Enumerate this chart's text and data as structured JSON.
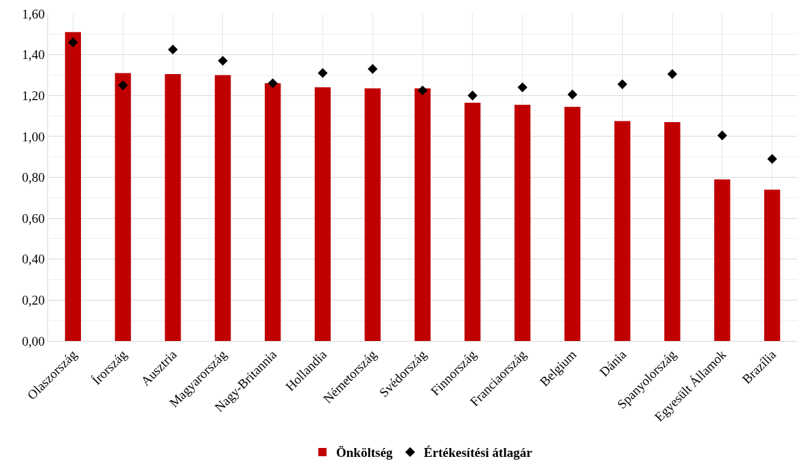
{
  "chart_data": {
    "type": "bar",
    "categories": [
      "Olaszország",
      "Írország",
      "Ausztria",
      "Magyarország",
      "Nagy-Britannia",
      "Hollandia",
      "Németország",
      "Svédország",
      "Finnország",
      "Franciaország",
      "Belgium",
      "Dánia",
      "Spanyolország",
      "Egyesült Államok",
      "Brazília"
    ],
    "series": [
      {
        "name": "Önköltség",
        "color": "#c00000",
        "values": [
          1.51,
          1.31,
          1.305,
          1.3,
          1.26,
          1.24,
          1.235,
          1.235,
          1.165,
          1.155,
          1.145,
          1.075,
          1.07,
          0.79,
          0.74
        ]
      },
      {
        "name": "Értékesítési átlagár",
        "type": "scatter",
        "marker": "diamond",
        "color": "#000000",
        "values": [
          1.46,
          1.25,
          1.425,
          1.37,
          1.26,
          1.31,
          1.33,
          1.225,
          1.2,
          1.24,
          1.205,
          1.255,
          1.305,
          1.005,
          0.89
        ]
      }
    ],
    "ylim": [
      0,
      1.6
    ],
    "yticks": [
      {
        "value": 0,
        "label": "0,00"
      },
      {
        "value": 0.2,
        "label": "0,20"
      },
      {
        "value": 0.4,
        "label": "0,40"
      },
      {
        "value": 0.6,
        "label": "0,60"
      },
      {
        "value": 0.8,
        "label": "0,80"
      },
      {
        "value": 1.0,
        "label": "1,00"
      },
      {
        "value": 1.2,
        "label": "1,20"
      },
      {
        "value": 1.4,
        "label": "1,40"
      },
      {
        "value": 1.6,
        "label": "1,60"
      }
    ],
    "grid": true,
    "legend": "bottom"
  }
}
